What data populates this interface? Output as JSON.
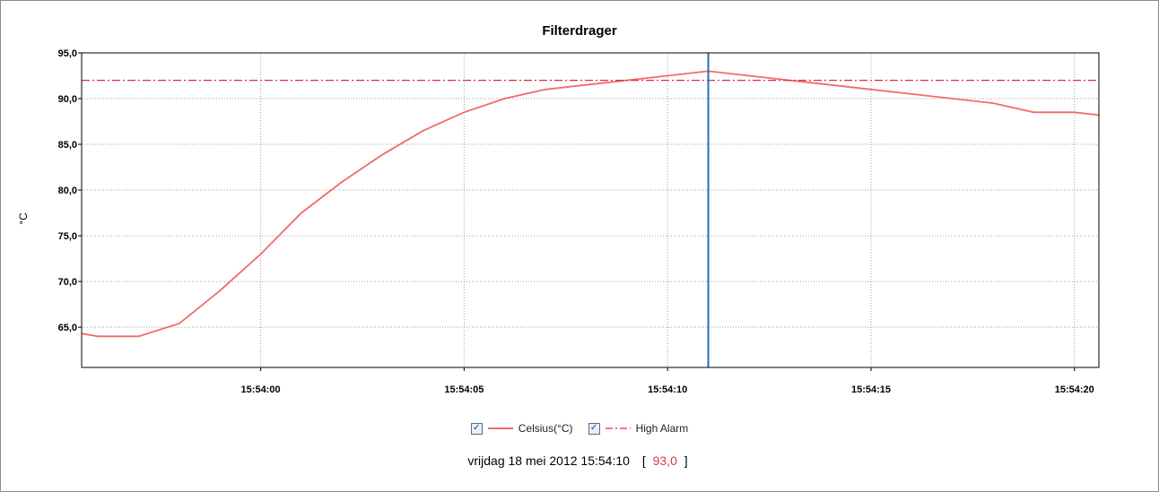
{
  "colors": {
    "series": "#f06b6b",
    "alarm": "#e8283a",
    "cursor": "#2a6cb0",
    "grid": "#a0a0a0"
  },
  "icons": {
    "checkbox": "checked-checkbox-icon"
  },
  "legend": {
    "items": [
      {
        "label": "Celsius(°C)",
        "checked": true
      },
      {
        "label": "High Alarm",
        "checked": true
      }
    ]
  },
  "readout": {
    "datetime": "vrijdag 18 mei 2012 15:54:10",
    "open": "[",
    "value": "93,0",
    "close": "]"
  },
  "chart_data": {
    "type": "line",
    "title": "Filterdrager",
    "ylabel": "°C",
    "xlabel": "",
    "ylim": [
      60.6,
      95.0
    ],
    "xlim_seconds": [
      -4.4,
      20.6
    ],
    "x_unit": "seconds after 15:54:00",
    "y_ticks": [
      95,
      90,
      85,
      80,
      75,
      70,
      65
    ],
    "y_tick_labels": [
      "95,0",
      "90,0",
      "85,0",
      "80,0",
      "75,0",
      "70,0",
      "65,0"
    ],
    "x_ticks_seconds": [
      0,
      5,
      10,
      15,
      20
    ],
    "x_tick_labels": [
      "15:54:00",
      "15:54:05",
      "15:54:10",
      "15:54:15",
      "15:54:20"
    ],
    "grid": true,
    "legend_position": "bottom-center",
    "series": [
      {
        "name": "Celsius(°C)",
        "x_seconds": [
          -4.4,
          -4.0,
          -3.0,
          -2.0,
          -1.0,
          0.0,
          1.0,
          2.0,
          3.0,
          4.0,
          5.0,
          6.0,
          7.0,
          8.0,
          9.0,
          10.0,
          11.0,
          12.0,
          13.0,
          14.0,
          15.0,
          16.0,
          17.0,
          18.0,
          19.0,
          20.0,
          20.6
        ],
        "values": [
          64.3,
          64.0,
          64.0,
          65.4,
          69.0,
          73.0,
          77.5,
          80.9,
          83.9,
          86.5,
          88.5,
          90.0,
          91.0,
          91.5,
          92.0,
          92.5,
          93.0,
          92.5,
          92.0,
          91.5,
          91.0,
          90.5,
          90.0,
          89.5,
          88.5,
          88.5,
          88.2
        ],
        "style": "solid"
      },
      {
        "name": "High Alarm",
        "x_seconds": [
          -4.4,
          20.6
        ],
        "values": [
          92.0,
          92.0
        ],
        "style": "dash-dot"
      }
    ],
    "cursor": {
      "x_seconds": 11.0
    }
  }
}
